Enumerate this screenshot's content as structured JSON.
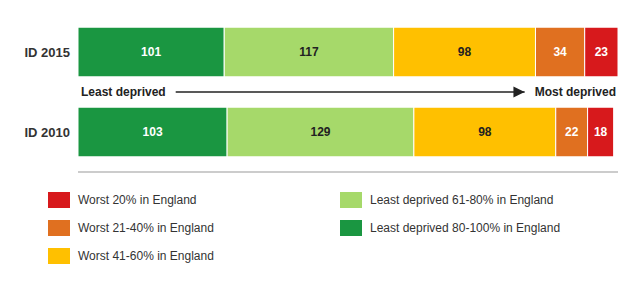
{
  "chart_data": {
    "type": "bar",
    "orientation": "horizontal",
    "stacked": true,
    "data_labels": true,
    "tick_labels": "y",
    "legend": "bottom",
    "categories": [
      "ID 2015",
      "ID 2010"
    ],
    "series": [
      {
        "name": "Least deprived 80-100% in England",
        "color": "#1a9641",
        "values": [
          101,
          103
        ]
      },
      {
        "name": "Least deprived 61-80% in England",
        "color": "#a6d96a",
        "values": [
          117,
          129
        ]
      },
      {
        "name": "Worst 41-60% in England",
        "color": "#ffc000",
        "values": [
          98,
          98
        ]
      },
      {
        "name": "Worst 21-40% in England",
        "color": "#e07020",
        "values": [
          34,
          22
        ]
      },
      {
        "name": "Worst 20% in England",
        "color": "#d7191c",
        "values": [
          23,
          18
        ]
      }
    ],
    "xlim": [
      0,
      373
    ],
    "annotations": [
      "Least deprived",
      "Most deprived"
    ]
  }
}
